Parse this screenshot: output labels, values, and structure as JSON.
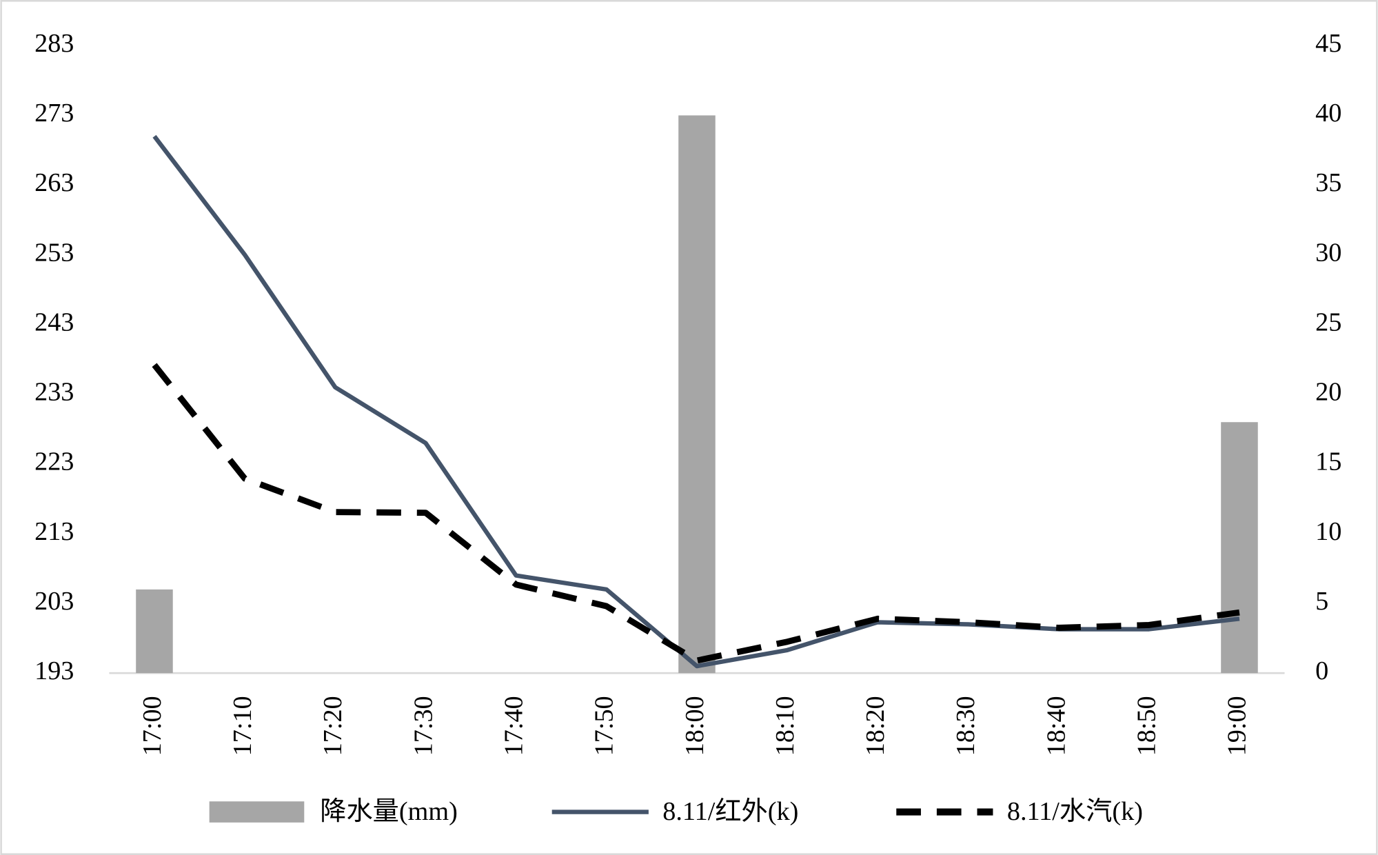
{
  "chart_data": {
    "type": "combo",
    "categories": [
      "17:00",
      "17:10",
      "17:20",
      "17:30",
      "17:40",
      "17:50",
      "18:00",
      "18:10",
      "18:20",
      "18:30",
      "18:40",
      "18:50",
      "19:00"
    ],
    "series": [
      {
        "name": "降水量(mm)",
        "type": "bar",
        "axis": "y2",
        "color": "#a6a6a6",
        "values": [
          6,
          0,
          0,
          0,
          0,
          0,
          40,
          0,
          0,
          0,
          0,
          0,
          18
        ]
      },
      {
        "name": "8.11/红外(k)",
        "type": "line",
        "color": "#44546a",
        "values": [
          270,
          253,
          234,
          226,
          207,
          205,
          194,
          196.3,
          200.3,
          200,
          199.3,
          199.3,
          200.8
        ]
      },
      {
        "name": "8.11/水汽(k)",
        "type": "line",
        "dashed": true,
        "color": "#000000",
        "values": [
          237.2,
          220.9,
          216.1,
          216,
          205.7,
          202.6,
          194.8,
          197.5,
          200.8,
          200.3,
          199.5,
          199.9,
          201.7
        ]
      }
    ],
    "ylim": [
      193,
      283
    ],
    "yticks": [
      193,
      203,
      213,
      223,
      233,
      243,
      253,
      263,
      273,
      283
    ],
    "y2lim": [
      0,
      45
    ],
    "y2ticks": [
      0,
      5,
      10,
      15,
      20,
      25,
      30,
      35,
      40,
      45
    ],
    "legend": "bottom"
  }
}
